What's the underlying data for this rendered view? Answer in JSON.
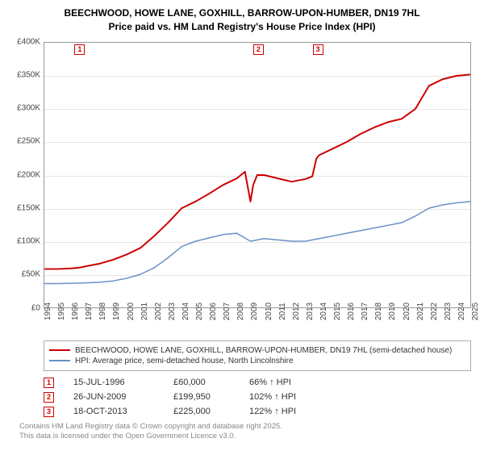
{
  "title_line1": "BEECHWOOD, HOWE LANE, GOXHILL, BARROW-UPON-HUMBER, DN19 7HL",
  "title_line2": "Price paid vs. HM Land Registry's House Price Index (HPI)",
  "chart": {
    "type": "line",
    "background_color": "#ffffff",
    "grid_color": "#e6e6e6",
    "border_color": "#999999",
    "x_years": [
      1994,
      1995,
      1996,
      1997,
      1998,
      1999,
      2000,
      2001,
      2002,
      2003,
      2004,
      2005,
      2006,
      2007,
      2008,
      2009,
      2010,
      2011,
      2012,
      2013,
      2014,
      2015,
      2016,
      2017,
      2018,
      2019,
      2020,
      2021,
      2022,
      2023,
      2024,
      2025
    ],
    "ylim": [
      0,
      400000
    ],
    "ytick_step": 50000,
    "ytick_labels": [
      "£0",
      "£50K",
      "£100K",
      "£150K",
      "£200K",
      "£250K",
      "£300K",
      "£350K",
      "£400K"
    ],
    "series": [
      {
        "name": "property",
        "label": "BEECHWOOD, HOWE LANE, GOXHILL, BARROW-UPON-HUMBER, DN19 7HL (semi-detached house)",
        "color": "#cc0000",
        "line_width": 2,
        "x": [
          1994,
          1995,
          1996,
          1996.54,
          1997,
          1998,
          1999,
          2000,
          2001,
          2002,
          2003,
          2004,
          2005,
          2006,
          2007,
          2008,
          2008.6,
          2009,
          2009.2,
          2009.49,
          2010,
          2011,
          2012,
          2013,
          2013.5,
          2013.8,
          2014,
          2015,
          2016,
          2017,
          2018,
          2019,
          2020,
          2021,
          2022,
          2023,
          2024,
          2025
        ],
        "y": [
          58000,
          58000,
          59000,
          60000,
          62000,
          66000,
          72000,
          80000,
          90000,
          108000,
          128000,
          150000,
          160000,
          172000,
          185000,
          195000,
          205000,
          160000,
          185000,
          199950,
          200000,
          195000,
          190000,
          194000,
          198000,
          225000,
          230000,
          240000,
          250000,
          262000,
          272000,
          280000,
          285000,
          300000,
          335000,
          345000,
          350000,
          352000
        ]
      },
      {
        "name": "hpi",
        "label": "HPI: Average price, semi-detached house, North Lincolnshire",
        "color": "#6a8fc5",
        "line_width": 1.5,
        "x": [
          1994,
          1995,
          1996,
          1997,
          1998,
          1999,
          2000,
          2001,
          2002,
          2003,
          2004,
          2005,
          2006,
          2007,
          2008,
          2009,
          2010,
          2011,
          2012,
          2013,
          2014,
          2015,
          2016,
          2017,
          2018,
          2019,
          2020,
          2021,
          2022,
          2023,
          2024,
          2025
        ],
        "y": [
          36000,
          36000,
          36500,
          37000,
          38000,
          40000,
          44000,
          50000,
          60000,
          75000,
          92000,
          100000,
          105000,
          110000,
          112000,
          100000,
          104000,
          102000,
          100000,
          100000,
          104000,
          108000,
          112000,
          116000,
          120000,
          124000,
          128000,
          138000,
          150000,
          155000,
          158000,
          160000
        ]
      }
    ],
    "markers": [
      {
        "n": "1",
        "x_year": 1996.54,
        "y_value": 60000
      },
      {
        "n": "2",
        "x_year": 2009.49,
        "y_value": 199950
      },
      {
        "n": "3",
        "x_year": 2013.8,
        "y_value": 225000
      }
    ],
    "xtick_fontsize": 10,
    "ytick_fontsize": 10,
    "title_fontsize": 12
  },
  "legend": {
    "items": [
      {
        "color": "#cc0000",
        "label": "BEECHWOOD, HOWE LANE, GOXHILL, BARROW-UPON-HUMBER, DN19 7HL (semi-detached house)"
      },
      {
        "color": "#6a8fc5",
        "label": "HPI: Average price, semi-detached house, North Lincolnshire"
      }
    ]
  },
  "sales": [
    {
      "n": "1",
      "date": "15-JUL-1996",
      "price": "£60,000",
      "hpi": "66% ↑ HPI"
    },
    {
      "n": "2",
      "date": "26-JUN-2009",
      "price": "£199,950",
      "hpi": "102% ↑ HPI"
    },
    {
      "n": "3",
      "date": "18-OCT-2013",
      "price": "£225,000",
      "hpi": "122% ↑ HPI"
    }
  ],
  "footnote_line1": "Contains HM Land Registry data © Crown copyright and database right 2025.",
  "footnote_line2": "This data is licensed under the Open Government Licence v3.0."
}
